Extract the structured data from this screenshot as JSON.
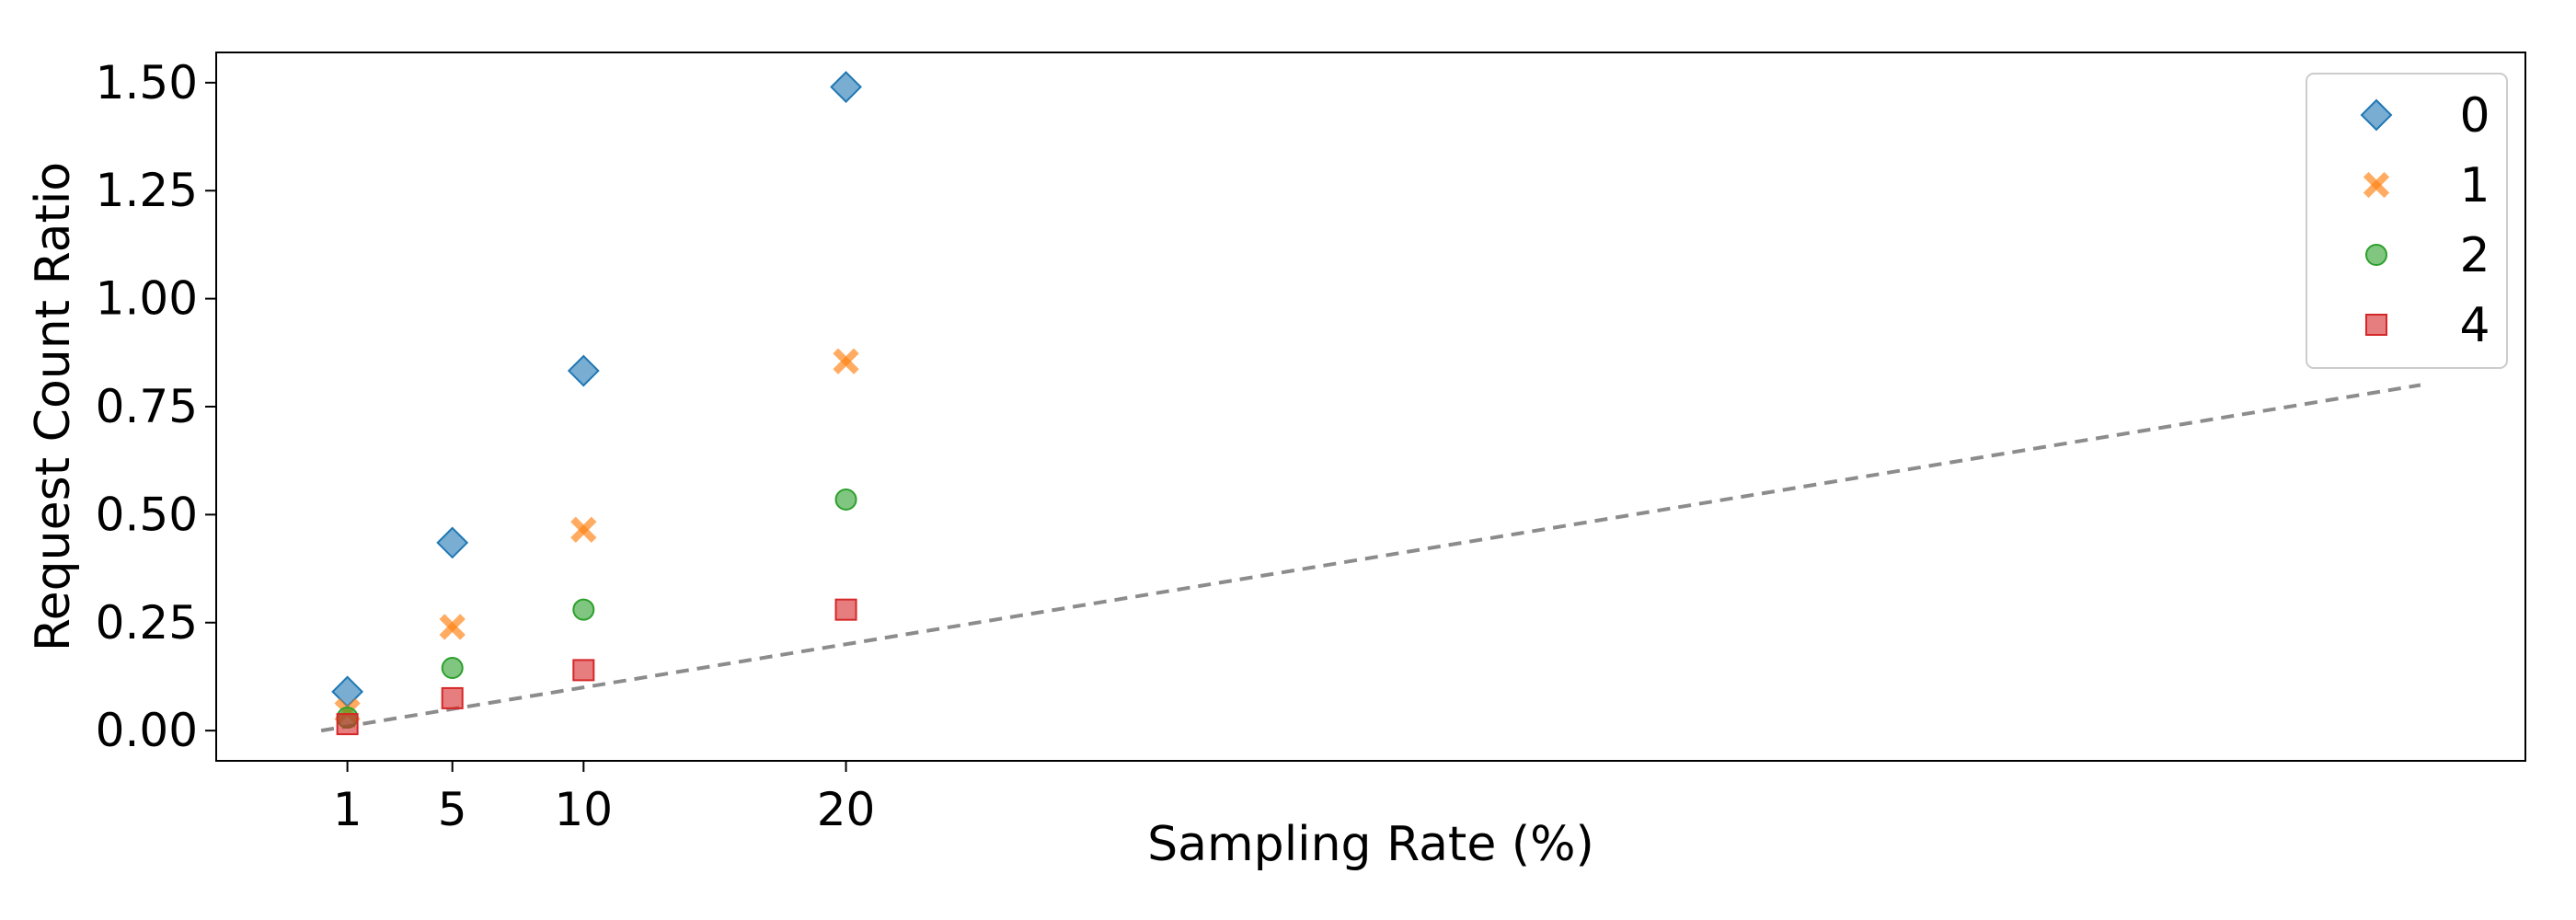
{
  "chart_data": {
    "type": "scatter",
    "title": "",
    "xlabel": "Sampling Rate (%)",
    "ylabel": "Request Count Ratio",
    "x_ticks": [
      1,
      5,
      10,
      20
    ],
    "x_tick_labels": [
      "1",
      "5",
      "10",
      "20"
    ],
    "y_ticks": [
      0.0,
      0.25,
      0.5,
      0.75,
      1.0,
      1.25,
      1.5
    ],
    "y_tick_labels": [
      "0.00",
      "0.25",
      "0.50",
      "0.75",
      "1.00",
      "1.25",
      "1.50"
    ],
    "xlim": [
      -4,
      84
    ],
    "ylim": [
      -0.07,
      1.57
    ],
    "grid": false,
    "legend_position": "top-right",
    "series": [
      {
        "name": "0",
        "marker": "diamond",
        "color": "#1f77b4",
        "x": [
          1,
          5,
          10,
          20
        ],
        "y": [
          0.09,
          0.435,
          0.833,
          1.49
        ]
      },
      {
        "name": "1",
        "marker": "x",
        "color": "#ff7f0e",
        "x": [
          1,
          5,
          10,
          20
        ],
        "y": [
          0.045,
          0.24,
          0.465,
          0.855
        ]
      },
      {
        "name": "2",
        "marker": "circle",
        "color": "#2ca02c",
        "x": [
          1,
          5,
          10,
          20
        ],
        "y": [
          0.03,
          0.145,
          0.28,
          0.535
        ]
      },
      {
        "name": "4",
        "marker": "square",
        "color": "#d62728",
        "x": [
          1,
          5,
          10,
          20
        ],
        "y": [
          0.015,
          0.075,
          0.14,
          0.28
        ]
      }
    ],
    "reference_line": {
      "style": "dashed",
      "color": "#8c8c8c",
      "x": [
        0,
        80
      ],
      "y": [
        0.0,
        0.8
      ]
    }
  }
}
